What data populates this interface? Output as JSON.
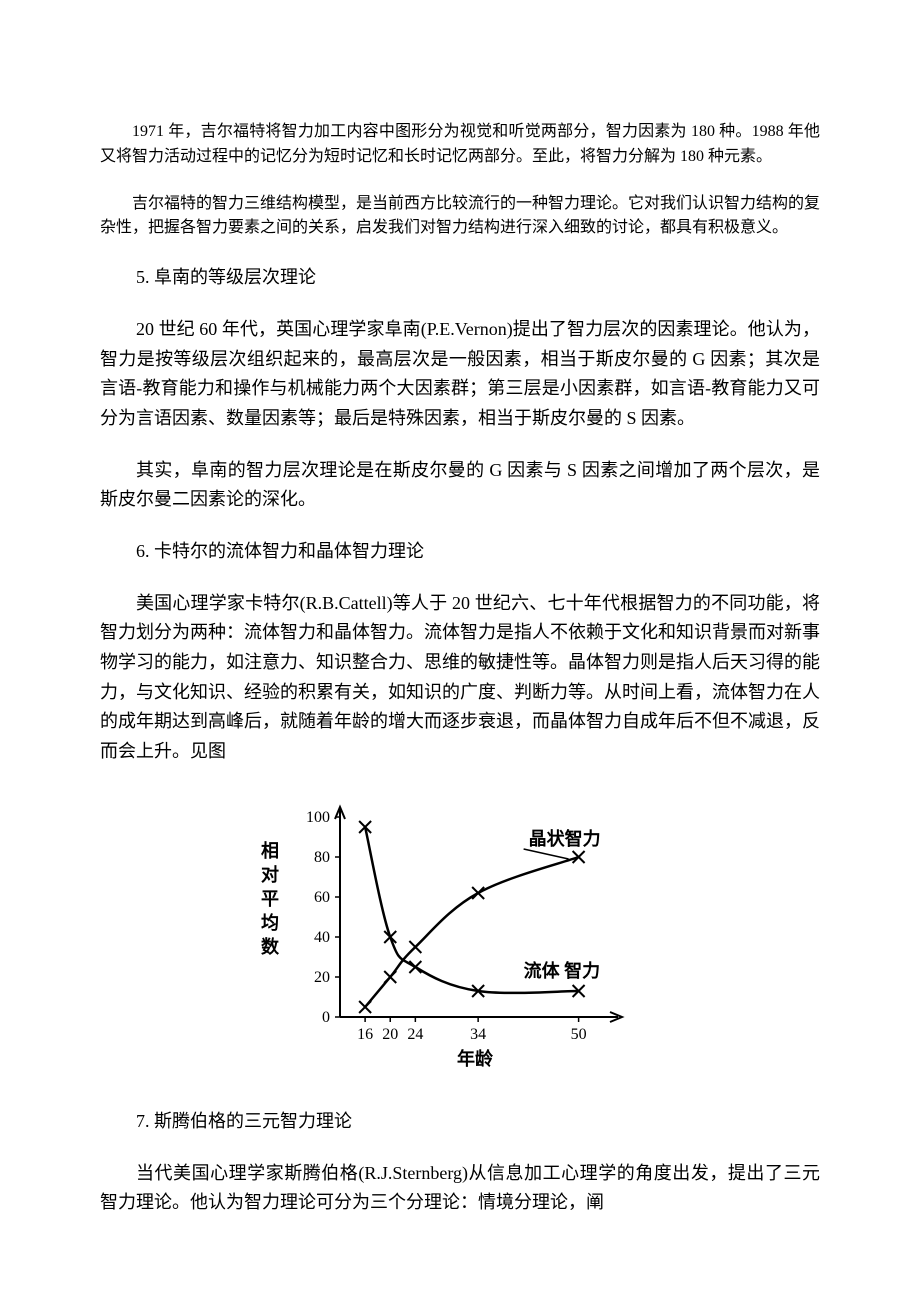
{
  "paragraphs": {
    "p1": "1971 年，吉尔福特将智力加工内容中图形分为视觉和听觉两部分，智力因素为 180 种。1988 年他又将智力活动过程中的记忆分为短时记忆和长时记忆两部分。至此，将智力分解为 180 种元素。",
    "p2": "吉尔福特的智力三维结构模型，是当前西方比较流行的一种智力理论。它对我们认识智力结构的复杂性，把握各智力要素之间的关系，启发我们对智力结构进行深入细致的讨论，都具有积极意义。",
    "h5": "5. 阜南的等级层次理论",
    "p3": "20 世纪 60 年代，英国心理学家阜南(P.E.Vernon)提出了智力层次的因素理论。他认为，智力是按等级层次组织起来的，最高层次是一般因素，相当于斯皮尔曼的 G 因素；其次是言语-教育能力和操作与机械能力两个大因素群；第三层是小因素群，如言语-教育能力又可分为言语因素、数量因素等；最后是特殊因素，相当于斯皮尔曼的 S 因素。",
    "p4": "其实，阜南的智力层次理论是在斯皮尔曼的 G 因素与 S 因素之间增加了两个层次，是斯皮尔曼二因素论的深化。",
    "h6": "6. 卡特尔的流体智力和晶体智力理论",
    "p5": "美国心理学家卡特尔(R.B.Cattell)等人于 20 世纪六、七十年代根据智力的不同功能，将智力划分为两种：流体智力和晶体智力。流体智力是指人不依赖于文化和知识背景而对新事物学习的能力，如注意力、知识整合力、思维的敏捷性等。晶体智力则是指人后天习得的能力，与文化知识、经验的积累有关，如知识的广度、判断力等。从时间上看，流体智力在人的成年期达到高峰后，就随着年龄的增大而逐步衰退，而晶体智力自成年后不但不减退，反而会上升。见图",
    "h7": "7. 斯腾伯格的三元智力理论",
    "p6": "当代美国心理学家斯腾伯格(R.J.Sternberg)从信息加工心理学的角度出发，提出了三元智力理论。他认为智力理论可分为三个分理论：情境分理论，阐"
  },
  "chart": {
    "type": "line",
    "y_label_vertical": "相对平均数",
    "x_label": "年龄",
    "x_ticks": [
      "16",
      "20",
      "24",
      "34",
      "50"
    ],
    "x_positions": [
      16,
      20,
      24,
      34,
      50
    ],
    "y_ticks": [
      0,
      20,
      40,
      60,
      80,
      100
    ],
    "ylim": [
      0,
      100
    ],
    "xlim": [
      12,
      55
    ],
    "series": {
      "fluid": {
        "label": "流体 智力",
        "points": [
          {
            "x": 16,
            "y": 95
          },
          {
            "x": 20,
            "y": 40
          },
          {
            "x": 24,
            "y": 25
          },
          {
            "x": 34,
            "y": 13
          },
          {
            "x": 50,
            "y": 13
          }
        ],
        "marker": "x"
      },
      "crystal": {
        "label": "晶状智力",
        "points": [
          {
            "x": 16,
            "y": 5
          },
          {
            "x": 20,
            "y": 20
          },
          {
            "x": 24,
            "y": 35
          },
          {
            "x": 34,
            "y": 62
          },
          {
            "x": 50,
            "y": 80
          }
        ],
        "marker": "x"
      }
    },
    "colors": {
      "axis": "#000000",
      "line": "#000000",
      "text": "#000000",
      "background": "#ffffff"
    },
    "stroke_width": 2.5,
    "marker_size": 6,
    "font_size_ticks": 16,
    "font_size_labels": 18
  }
}
